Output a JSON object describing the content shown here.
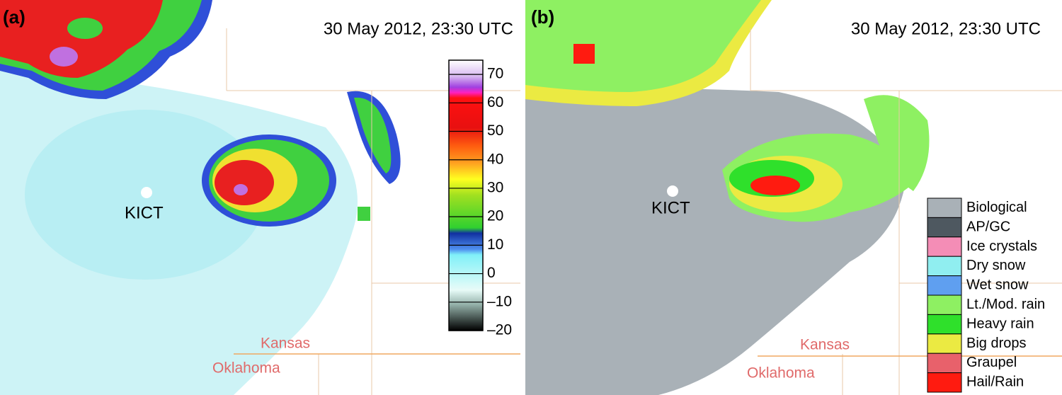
{
  "panels": [
    {
      "label": "(a)",
      "timestamp": "30 May 2012, 23:30 UTC",
      "radar": "KICT",
      "states": [
        "Kansas",
        "Oklahoma"
      ],
      "colorbar": {
        "range": [
          -20,
          75
        ],
        "ticks": [
          {
            "value": -20,
            "label": "–20"
          },
          {
            "value": -10,
            "label": "–10"
          },
          0,
          10,
          20,
          30,
          40,
          50,
          60,
          70
        ]
      }
    },
    {
      "label": "(b)",
      "timestamp": "30 May 2012, 23:30 UTC",
      "radar": "KICT",
      "states": [
        "Kansas",
        "Oklahoma"
      ],
      "legend": [
        {
          "name": "Biological",
          "color": "#a9b1b7"
        },
        {
          "name": "AP/GC",
          "color": "#4e5860"
        },
        {
          "name": "Ice crystals",
          "color": "#f48db6"
        },
        {
          "name": "Dry snow",
          "color": "#90eef0"
        },
        {
          "name": "Wet snow",
          "color": "#5f9ff0"
        },
        {
          "name": "Lt./Mod. rain",
          "color": "#8ef062"
        },
        {
          "name": "Heavy rain",
          "color": "#2fe02b"
        },
        {
          "name": "Big drops",
          "color": "#ebea42"
        },
        {
          "name": "Graupel",
          "color": "#e8616b"
        },
        {
          "name": "Hail/Rain",
          "color": "#ff1b10"
        }
      ]
    }
  ]
}
